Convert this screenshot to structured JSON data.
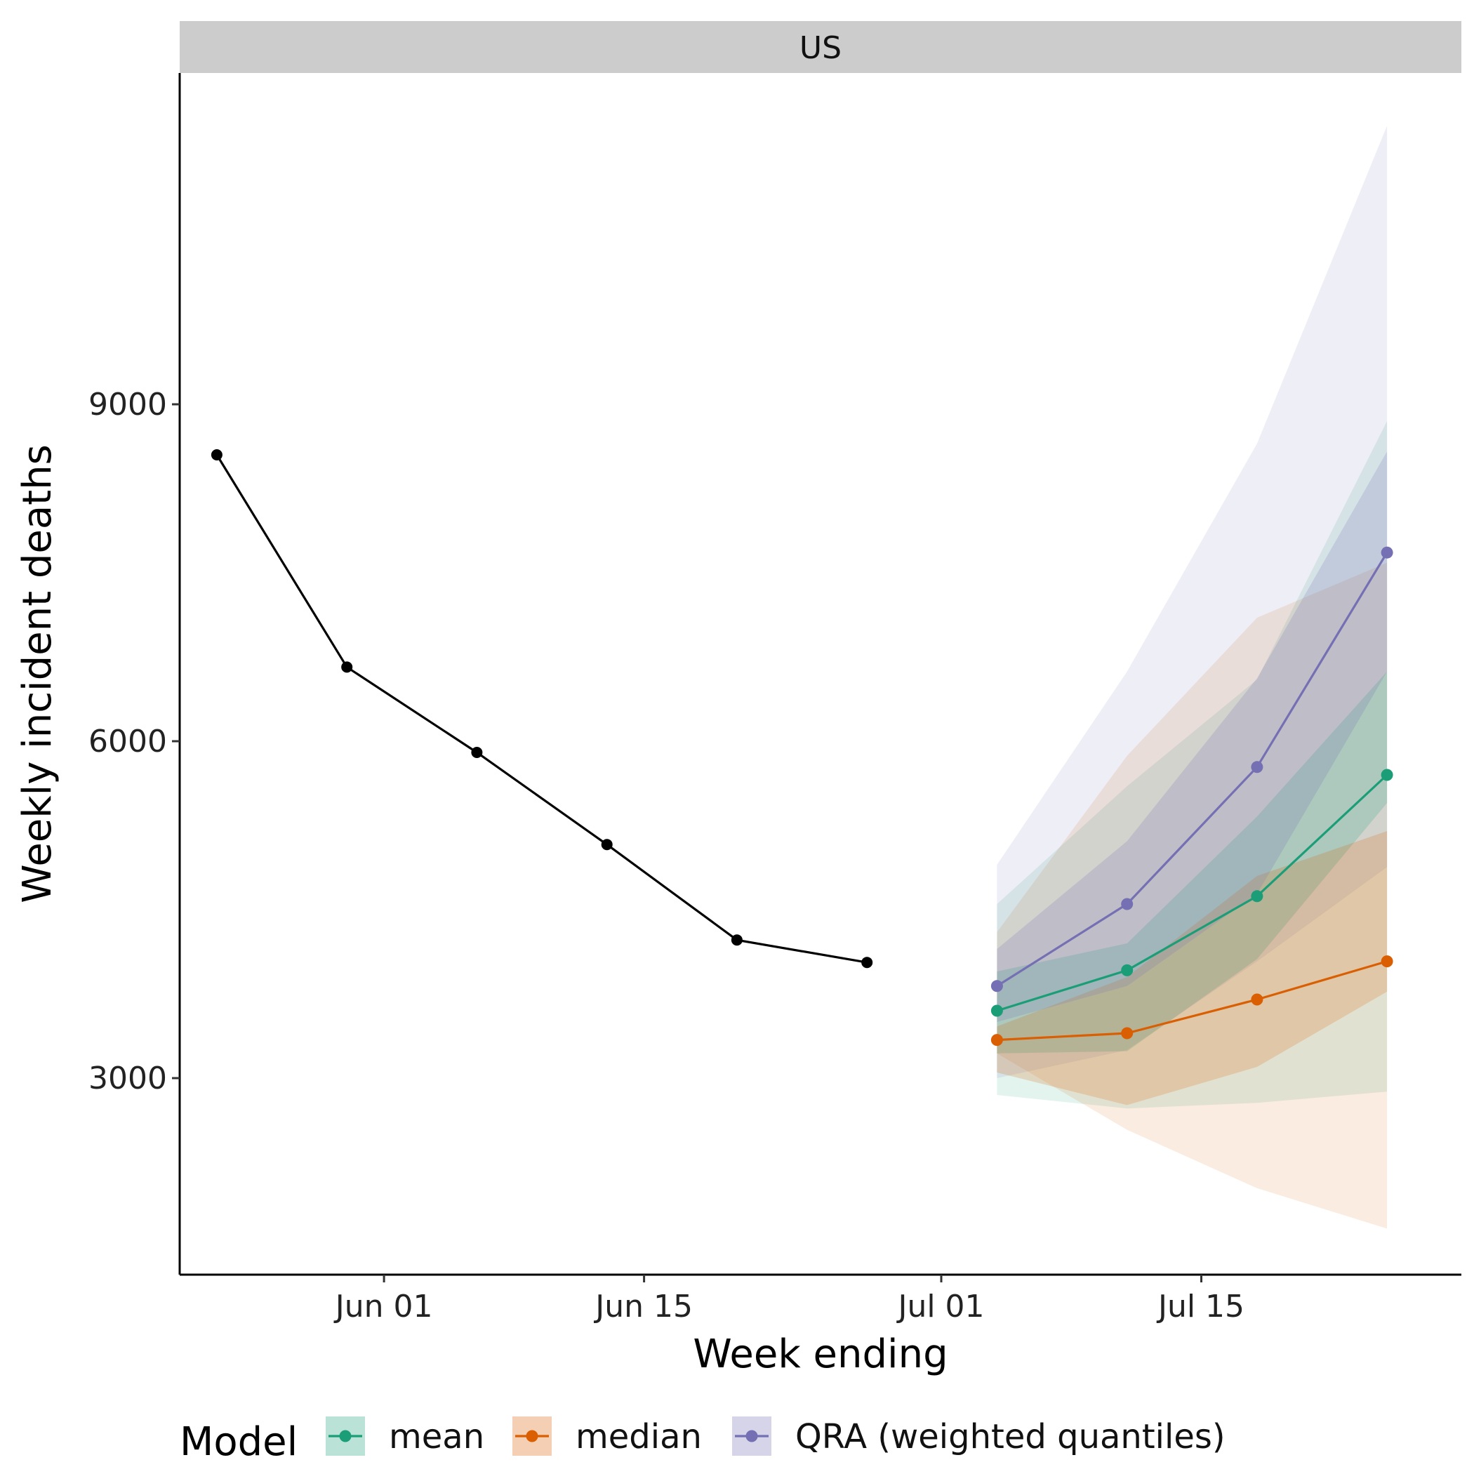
{
  "chart_data": {
    "type": "line",
    "facet": "US",
    "xlabel": "Week ending",
    "ylabel": "Weekly incident deaths",
    "x_ticks": [
      {
        "date": "2020-06-01",
        "label": "Jun 01"
      },
      {
        "date": "2020-06-15",
        "label": "Jun 15"
      },
      {
        "date": "2020-07-01",
        "label": "Jul 01"
      },
      {
        "date": "2020-07-15",
        "label": "Jul 15"
      }
    ],
    "y_ticks": [
      3000,
      6000,
      9000
    ],
    "xlim": [
      "2020-05-21",
      "2020-07-29"
    ],
    "ylim": [
      1250,
      11950
    ],
    "observed": {
      "color": "#000000",
      "x": [
        "2020-05-23",
        "2020-05-30",
        "2020-06-06",
        "2020-06-13",
        "2020-06-20",
        "2020-06-27"
      ],
      "y": [
        8550,
        6660,
        5900,
        5080,
        4230,
        4030
      ]
    },
    "forecast_x": [
      "2020-07-04",
      "2020-07-11",
      "2020-07-18",
      "2020-07-25"
    ],
    "series": [
      {
        "name": "mean",
        "color": "#1b9e77",
        "values": [
          3600,
          3960,
          4620,
          5700
        ],
        "band_90": {
          "lower": [
            2850,
            2730,
            2780,
            2880
          ],
          "upper": [
            4550,
            5600,
            6550,
            8850
          ]
        },
        "band_50": {
          "lower": [
            3220,
            3240,
            4060,
            5450
          ],
          "upper": [
            3950,
            4200,
            5330,
            6620
          ]
        }
      },
      {
        "name": "median",
        "color": "#d95f02",
        "values": [
          3340,
          3400,
          3700,
          4040
        ],
        "band_90": {
          "lower": [
            3220,
            2540,
            2020,
            1660
          ],
          "upper": [
            4300,
            5870,
            7100,
            7590
          ]
        },
        "band_50": {
          "lower": [
            3050,
            2760,
            3100,
            3770
          ],
          "upper": [
            3460,
            3900,
            4800,
            5200
          ]
        }
      },
      {
        "name": "QRA (weighted quantiles)",
        "color": "#7570b3",
        "values": [
          3820,
          4550,
          5770,
          7680
        ],
        "band_90": {
          "lower": [
            3000,
            3250,
            4040,
            4880
          ],
          "upper": [
            4900,
            6620,
            8650,
            11480
          ]
        },
        "band_50": {
          "lower": [
            3500,
            3820,
            4640,
            6620
          ],
          "upper": [
            4150,
            5110,
            6560,
            8580
          ]
        }
      }
    ],
    "legend": {
      "title": "Model",
      "position": "bottom",
      "entries": [
        "mean",
        "median",
        "QRA (weighted quantiles)"
      ]
    }
  }
}
